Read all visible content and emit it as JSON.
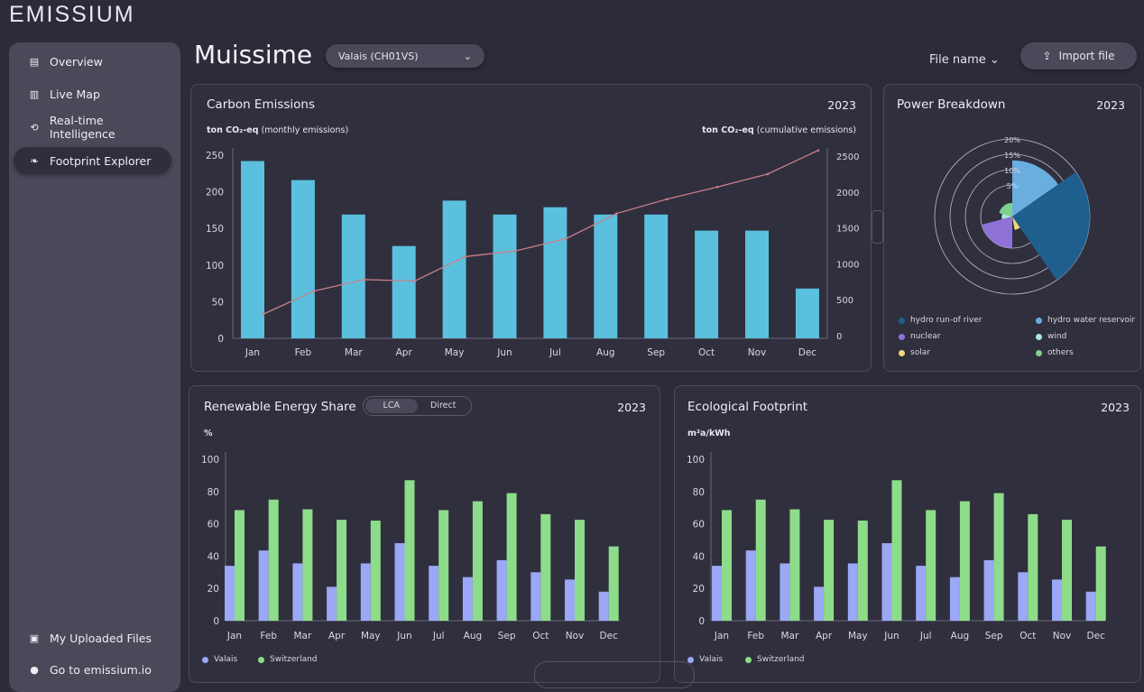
{
  "app": {
    "logo": "EMISSIUM",
    "page_title": "Muissime"
  },
  "region_select": {
    "value": "Valais (CH01VS)"
  },
  "header": {
    "file_name_label": "File name",
    "import_label": "Import file"
  },
  "sidebar": {
    "items": [
      {
        "label": "Overview",
        "icon": "overview-icon"
      },
      {
        "label": "Live Map",
        "icon": "map-icon"
      },
      {
        "label": "Real-time Intelligence",
        "icon": "intelligence-icon"
      },
      {
        "label": "Footprint Explorer",
        "icon": "leaf-icon",
        "active": true
      }
    ],
    "footer": [
      {
        "label": "My Uploaded Files",
        "icon": "inbox-icon"
      },
      {
        "label": "Go to emissium.io",
        "icon": "location-icon"
      }
    ]
  },
  "colors": {
    "bar": "#5bc0de",
    "line": "#c9808a",
    "valais": "#9aa8f5",
    "switzerland": "#8ddc8a"
  },
  "carbon": {
    "title": "Carbon Emissions",
    "year": "2023"
  },
  "power": {
    "title": "Power Breakdown",
    "year": "2023"
  },
  "renewable": {
    "title": "Renewable Energy Share",
    "year": "2023",
    "toggle": [
      "LCA",
      "Direct"
    ]
  },
  "eco": {
    "title": "Ecological Footprint",
    "year": "2023"
  },
  "chart_data": [
    {
      "type": "bar",
      "title": "Carbon Emissions",
      "ylabel_left": "ton CO₂-eq",
      "ylabel_left_note": "(monthly emissions)",
      "ylabel_right": "ton CO₂-eq",
      "ylabel_right_note": "(cumulative emissions)",
      "categories": [
        "Jan",
        "Feb",
        "Mar",
        "Apr",
        "May",
        "Jun",
        "Jul",
        "Aug",
        "Sep",
        "Oct",
        "Nov",
        "Dec"
      ],
      "ylim": [
        0,
        250
      ],
      "yticks": [
        0,
        50,
        100,
        150,
        200,
        250
      ],
      "y2lim": [
        0,
        2500
      ],
      "y2ticks": [
        0,
        500,
        1000,
        1500,
        2000,
        2500
      ],
      "values": [
        242,
        216,
        169,
        126,
        188,
        169,
        179,
        169,
        169,
        147,
        147,
        68
      ],
      "line": [
        300,
        620,
        780,
        760,
        1100,
        1180,
        1350,
        1700,
        1900,
        2070,
        2250,
        2580
      ]
    },
    {
      "type": "pie",
      "subtype": "polar-area",
      "title": "Power Breakdown",
      "rticks": [
        "5%",
        "10%",
        "15%",
        "20%"
      ],
      "slices": [
        {
          "name": "hydro water reservoir",
          "value": 13,
          "color": "#6aaee0"
        },
        {
          "name": "hydro run-of river",
          "value": 20,
          "color": "#1e5f8e"
        },
        {
          "name": "solar",
          "value": 1.5,
          "color": "#f2d67a"
        },
        {
          "name": "nuclear",
          "value": 5,
          "color": "#8f72d8"
        },
        {
          "name": "wind",
          "value": 0.5,
          "color": "#a9e6e0"
        },
        {
          "name": "others",
          "value": 1.5,
          "color": "#7fd08c"
        }
      ],
      "legend_order": [
        "hydro run-of river",
        "hydro water reservoir",
        "nuclear",
        "wind",
        "solar",
        "others"
      ]
    },
    {
      "type": "bar",
      "title": "Renewable Energy Share",
      "ylabel": "%",
      "ylim": [
        0,
        100
      ],
      "yticks": [
        0,
        20,
        40,
        60,
        80,
        100
      ],
      "categories": [
        "Jan",
        "Feb",
        "Mar",
        "Apr",
        "May",
        "Jun",
        "Jul",
        "Aug",
        "Sep",
        "Oct",
        "Nov",
        "Dec"
      ],
      "series": [
        {
          "name": "Valais",
          "values": [
            34,
            43.5,
            35.5,
            21,
            35.5,
            48,
            34,
            27,
            37.5,
            30,
            25.5,
            18
          ]
        },
        {
          "name": "Switzerland",
          "values": [
            68.5,
            75,
            69,
            62.5,
            62,
            87,
            68.5,
            74,
            79,
            66,
            62.5,
            46
          ]
        }
      ]
    },
    {
      "type": "bar",
      "title": "Ecological Footprint",
      "ylabel": "m²a/kWh",
      "ylim": [
        0,
        100
      ],
      "yticks": [
        0,
        20,
        40,
        60,
        80,
        100
      ],
      "categories": [
        "Jan",
        "Feb",
        "Mar",
        "Apr",
        "May",
        "Jun",
        "Jul",
        "Aug",
        "Sep",
        "Oct",
        "Nov",
        "Dec"
      ],
      "series": [
        {
          "name": "Valais",
          "values": [
            34,
            43.5,
            35.5,
            21,
            35.5,
            48,
            34,
            27,
            37.5,
            30,
            25.5,
            18
          ]
        },
        {
          "name": "Switzerland",
          "values": [
            68.5,
            75,
            69,
            62.5,
            62,
            87,
            68.5,
            74,
            79,
            66,
            62.5,
            46
          ]
        }
      ]
    }
  ]
}
